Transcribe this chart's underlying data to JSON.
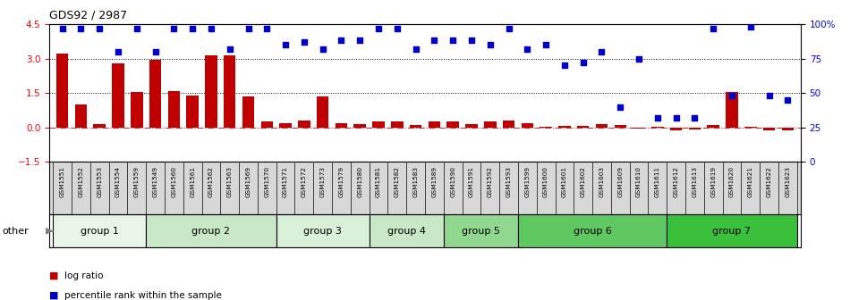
{
  "title": "GDS92 / 2987",
  "samples": [
    "GSM1551",
    "GSM1552",
    "GSM1553",
    "GSM1554",
    "GSM1559",
    "GSM1549",
    "GSM1560",
    "GSM1561",
    "GSM1562",
    "GSM1563",
    "GSM1569",
    "GSM1570",
    "GSM1571",
    "GSM1572",
    "GSM1573",
    "GSM1579",
    "GSM1580",
    "GSM1581",
    "GSM1582",
    "GSM1583",
    "GSM1589",
    "GSM1590",
    "GSM1591",
    "GSM1592",
    "GSM1593",
    "GSM1599",
    "GSM1600",
    "GSM1601",
    "GSM1602",
    "GSM1603",
    "GSM1609",
    "GSM1610",
    "GSM1611",
    "GSM1612",
    "GSM1613",
    "GSM1619",
    "GSM1620",
    "GSM1621",
    "GSM1622",
    "GSM1623"
  ],
  "log_ratio": [
    3.2,
    1.0,
    0.15,
    2.8,
    1.55,
    2.95,
    1.6,
    1.4,
    3.15,
    3.15,
    1.35,
    0.25,
    0.18,
    0.3,
    1.35,
    0.2,
    0.15,
    0.25,
    0.25,
    0.1,
    0.25,
    0.25,
    0.15,
    0.25,
    0.3,
    0.2,
    0.05,
    0.08,
    0.08,
    0.15,
    0.1,
    -0.05,
    0.05,
    -0.12,
    -0.1,
    0.1,
    1.55,
    0.05,
    -0.12,
    -0.12
  ],
  "percentile": [
    97,
    97,
    97,
    80,
    97,
    80,
    97,
    97,
    97,
    82,
    97,
    97,
    85,
    87,
    82,
    88,
    88,
    97,
    97,
    82,
    88,
    88,
    88,
    85,
    97,
    82,
    85,
    70,
    72,
    80,
    40,
    75,
    32,
    32,
    32,
    97,
    48,
    98,
    48,
    45
  ],
  "group_boundaries": [
    0,
    5,
    12,
    17,
    21,
    25,
    33,
    40
  ],
  "group_names": [
    "group 1",
    "group 2",
    "group 3",
    "group 4",
    "group 5",
    "group 6",
    "group 7"
  ],
  "group_colors": [
    "#e8f5e8",
    "#c8e8c8",
    "#d8f0d8",
    "#c8e8c8",
    "#90d890",
    "#60c860",
    "#3ac03a"
  ],
  "bar_color": "#c00000",
  "scatter_color": "#0000cc",
  "ylim_left": [
    -1.5,
    4.5
  ],
  "ylim_right": [
    0,
    100
  ],
  "yticks_left": [
    -1.5,
    0.0,
    1.5,
    3.0,
    4.5
  ],
  "yticks_right": [
    0,
    25,
    50,
    75,
    100
  ],
  "hline_zero_color": "#c00000",
  "hline_ref_color": "#000000",
  "background_color": "#ffffff",
  "label_bg_color": "#d8d8d8"
}
